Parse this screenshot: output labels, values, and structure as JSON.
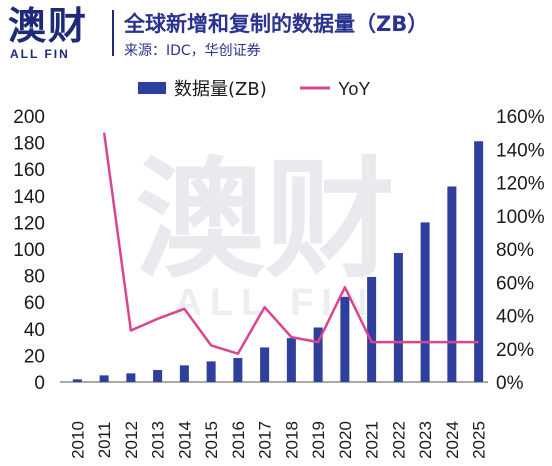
{
  "header": {
    "brand": "澳财",
    "brand_sub": "ALL FIN",
    "title": "全球新增和复制的数据量（ZB）",
    "source": "来源：IDC，华创证券"
  },
  "watermark": {
    "main": "澳财",
    "sub": "ALL FIN"
  },
  "colors": {
    "bar": "#2e3f9e",
    "line": "#d9458f",
    "text": "#1a1a1a",
    "brand": "#1e2a78"
  },
  "chart_data": {
    "type": "bar",
    "categories": [
      "2010",
      "2011",
      "2012",
      "2013",
      "2014",
      "2015",
      "2016",
      "2017",
      "2018",
      "2019",
      "2020",
      "2021",
      "2022",
      "2023",
      "2024",
      "2025"
    ],
    "series": [
      {
        "name": "数据量(ZB)",
        "type": "bar",
        "axis": "left",
        "values": [
          2,
          5,
          6.5,
          9,
          12.5,
          15.5,
          18,
          26,
          33,
          41,
          64,
          79,
          97,
          120,
          147,
          181
        ]
      },
      {
        "name": "YoY",
        "type": "line",
        "axis": "right",
        "values": [
          null,
          150,
          31,
          38,
          44,
          22,
          17,
          45,
          27,
          24,
          57,
          24,
          24,
          24,
          24,
          24
        ]
      }
    ],
    "y_left": {
      "min": 0,
      "max": 200,
      "ticks": [
        "0",
        "20",
        "40",
        "60",
        "80",
        "100",
        "120",
        "140",
        "160",
        "180",
        "200"
      ]
    },
    "y_right": {
      "min": 0,
      "max": 160,
      "ticks": [
        "0%",
        "20%",
        "40%",
        "60%",
        "80%",
        "100%",
        "120%",
        "140%",
        "160%"
      ]
    },
    "legend_position": "top-center",
    "grid": false
  }
}
